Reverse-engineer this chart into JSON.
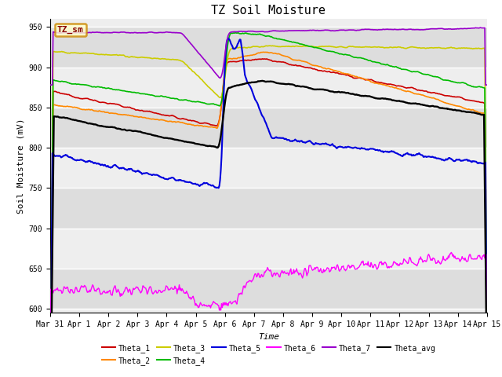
{
  "title": "TZ Soil Moisture",
  "ylabel": "Soil Moisture (mV)",
  "xlabel": "Time",
  "ylim": [
    595,
    960
  ],
  "yticks": [
    600,
    650,
    700,
    750,
    800,
    850,
    900,
    950
  ],
  "xtick_labels": [
    "Mar 31",
    "Apr 1",
    "Apr 2",
    "Apr 3",
    "Apr 4",
    "Apr 5",
    "Apr 6",
    "Apr 7",
    "Apr 8",
    "Apr 9",
    "Apr 10",
    "Apr 11",
    "Apr 12",
    "Apr 13",
    "Apr 14",
    "Apr 15"
  ],
  "legend_label": "TZ_sm",
  "legend_box_facecolor": "#ffffcc",
  "legend_box_edgecolor": "#cc8800",
  "series_colors": {
    "Theta_1": "#cc0000",
    "Theta_2": "#ff8800",
    "Theta_3": "#cccc00",
    "Theta_4": "#00bb00",
    "Theta_5": "#0000dd",
    "Theta_6": "#ff00ff",
    "Theta_7": "#9900cc",
    "Theta_avg": "#000000"
  },
  "plot_bg_color": "#eeeeee",
  "band_color": "#dddddd",
  "title_fontsize": 11,
  "axis_fontsize": 8,
  "tick_fontsize": 7
}
